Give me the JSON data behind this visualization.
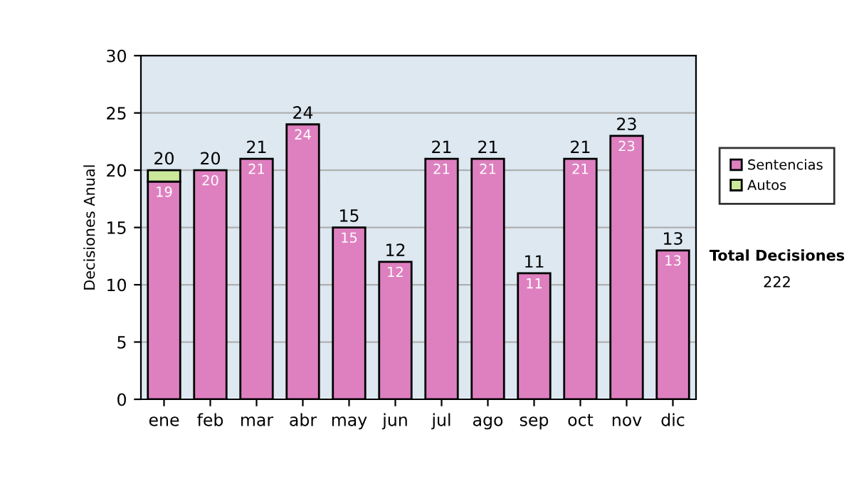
{
  "chart_data": {
    "type": "bar",
    "stacked": true,
    "ylabel": "Decisiones Anual",
    "categories": [
      "ene",
      "feb",
      "mar",
      "abr",
      "may",
      "jun",
      "jul",
      "ago",
      "sep",
      "oct",
      "nov",
      "dic"
    ],
    "series": [
      {
        "name": "Sentencias",
        "color": "#de80c0",
        "values": [
          19,
          20,
          21,
          24,
          15,
          12,
          21,
          21,
          11,
          21,
          23,
          13
        ],
        "value_labels": [
          "19",
          "20",
          "21",
          "24",
          "15",
          "12",
          "21",
          "21",
          "11",
          "21",
          "23",
          "13"
        ]
      },
      {
        "name": "Autos",
        "color": "#cce89a",
        "values": [
          1,
          null,
          null,
          null,
          null,
          null,
          null,
          null,
          null,
          null,
          null,
          null
        ]
      }
    ],
    "totals": [
      "20",
      "20",
      "21",
      "24",
      "15",
      "12",
      "21",
      "21",
      "11",
      "21",
      "23",
      "13"
    ],
    "ylim": [
      0,
      30
    ],
    "yticks": [
      0,
      5,
      10,
      15,
      20,
      25,
      30
    ],
    "grid": "y",
    "legend": "right",
    "annotations": [
      "Total Decisiones",
      "222"
    ]
  }
}
